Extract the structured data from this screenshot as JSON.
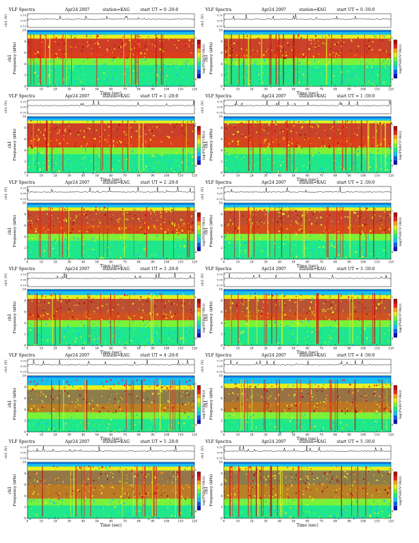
{
  "figure_labels": {
    "panel_title": "VLF Spectra",
    "date": "Apr24 2007",
    "station": "station=KAG",
    "start_prefix": "start  UT",
    "xlabel": "Time  (sec)",
    "ylabel_top": "ch1 (V)",
    "ylabel_spec_channel": "ch1",
    "ylabel_spec": "Frequency  (kHz)",
    "colorbar_label": "log(PSD/(V²/Hz))"
  },
  "panel_times": [
    "= 0 :20:0",
    "= 0 :50:0",
    "= 1 :20:0",
    "= 1 :50:0",
    "= 2 :20:0",
    "= 2 :50:0",
    "= 3 :20:0",
    "= 3 :50:0",
    "= 4 :20:0",
    "= 4 :50:0",
    "= 5 :20:0",
    "= 5 :50:0"
  ],
  "colors": {
    "spectrum_scale": [
      "#1212b8",
      "#1060e8",
      "#18c0ee",
      "#1fe88a",
      "#7af23a",
      "#e8ee20",
      "#f5a21c",
      "#e82418",
      "#b01010"
    ],
    "panel_background": "#ffffff",
    "axis": "#000000"
  },
  "chart_data": [
    {
      "type": "heatmap",
      "panel": "UT 0:20:0",
      "top_trace_yticks": [
        "0.10",
        "0.00",
        "-0.10"
      ],
      "top_trace_ylim": [
        -0.1,
        0.1
      ],
      "xlim": [
        0,
        120
      ],
      "xticks": [
        0,
        10,
        20,
        30,
        40,
        50,
        60,
        70,
        80,
        90,
        100,
        110,
        120
      ],
      "ylim_khz": [
        0,
        10
      ],
      "yticks_khz": [
        0,
        2,
        4,
        6,
        8,
        10
      ],
      "colorbar_range": [
        -4,
        1
      ],
      "colorbar_ticks": [
        1,
        -4
      ],
      "band_khz": {
        "dense_red": [
          5,
          8.5
        ],
        "yellow": [
          8.5,
          9.2
        ],
        "cyan_top": [
          9.2,
          10
        ]
      },
      "intensity": 0.88
    },
    {
      "type": "heatmap",
      "panel": "UT 0:50:0",
      "top_trace_yticks": [
        "0.10",
        "0.00",
        "-0.10"
      ],
      "top_trace_ylim": [
        -0.1,
        0.1
      ],
      "xlim": [
        0,
        120
      ],
      "xticks": [
        0,
        10,
        20,
        30,
        40,
        50,
        60,
        70,
        80,
        90,
        100,
        110,
        120
      ],
      "ylim_khz": [
        0,
        10
      ],
      "yticks_khz": [
        0,
        2,
        4,
        6,
        8,
        10
      ],
      "colorbar_range": [
        -4,
        1
      ],
      "colorbar_ticks": [
        1,
        -4
      ],
      "band_khz": {
        "dense_red": [
          5,
          8.5
        ],
        "yellow": [
          8.5,
          9.2
        ],
        "cyan_top": [
          9.2,
          10
        ]
      },
      "intensity": 0.85
    },
    {
      "type": "heatmap",
      "panel": "UT 1:20:0",
      "top_trace_yticks": [
        "0.20",
        "0.00",
        "-0.20"
      ],
      "top_trace_ylim": [
        -0.2,
        0.2
      ],
      "xlim": [
        0,
        120
      ],
      "xticks": [
        0,
        10,
        20,
        30,
        40,
        50,
        60,
        70,
        80,
        90,
        100,
        110,
        120
      ],
      "ylim_khz": [
        0,
        10
      ],
      "yticks_khz": [
        0,
        2,
        4,
        6,
        8,
        10
      ],
      "colorbar_range": [
        -4,
        1
      ],
      "colorbar_ticks": [
        1,
        -4
      ],
      "band_khz": {
        "dense_red": [
          4.5,
          8.8
        ],
        "yellow": [
          8.8,
          9.3
        ],
        "cyan_top": [
          9.3,
          10
        ]
      },
      "intensity": 0.86
    },
    {
      "type": "heatmap",
      "panel": "UT 1:50:0",
      "top_trace_yticks": [
        "0.20",
        "0.00",
        "-0.20"
      ],
      "top_trace_ylim": [
        -0.2,
        0.2
      ],
      "xlim": [
        0,
        120
      ],
      "xticks": [
        0,
        10,
        20,
        30,
        40,
        50,
        60,
        70,
        80,
        90,
        100,
        110,
        120
      ],
      "ylim_khz": [
        0,
        10
      ],
      "yticks_khz": [
        0,
        2,
        4,
        6,
        8,
        10
      ],
      "colorbar_range": [
        -4,
        1
      ],
      "colorbar_ticks": [
        1,
        -4
      ],
      "band_khz": {
        "dense_red": [
          4.5,
          8.8
        ],
        "yellow": [
          8.8,
          9.3
        ],
        "cyan_top": [
          9.3,
          10
        ]
      },
      "intensity": 0.84
    },
    {
      "type": "heatmap",
      "panel": "UT 2:20:0",
      "top_trace_yticks": [
        "0.20",
        "0.00",
        "-0.20"
      ],
      "top_trace_ylim": [
        -0.2,
        0.2
      ],
      "xlim": [
        0,
        120
      ],
      "xticks": [
        0,
        10,
        20,
        30,
        40,
        50,
        60,
        70,
        80,
        90,
        100,
        110,
        120
      ],
      "ylim_khz": [
        0,
        10
      ],
      "yticks_khz": [
        0,
        2,
        4,
        6,
        8,
        10
      ],
      "colorbar_range": [
        -4,
        1
      ],
      "colorbar_ticks": [
        1,
        -4
      ],
      "band_khz": {
        "dense_red": [
          4.5,
          8.6
        ],
        "yellow": [
          8.6,
          9.2
        ],
        "cyan_top": [
          9.2,
          10
        ]
      },
      "intensity": 0.8
    },
    {
      "type": "heatmap",
      "panel": "UT 2:50:0",
      "top_trace_yticks": [
        "0.20",
        "0.00",
        "-0.20"
      ],
      "top_trace_ylim": [
        -0.2,
        0.2
      ],
      "xlim": [
        0,
        120
      ],
      "xticks": [
        0,
        10,
        20,
        30,
        40,
        50,
        60,
        70,
        80,
        90,
        100,
        110,
        120
      ],
      "ylim_khz": [
        0,
        10
      ],
      "yticks_khz": [
        0,
        2,
        4,
        6,
        8,
        10
      ],
      "colorbar_range": [
        -4,
        1
      ],
      "colorbar_ticks": [
        1,
        -4
      ],
      "band_khz": {
        "dense_red": [
          4.5,
          8.6
        ],
        "yellow": [
          8.6,
          9.2
        ],
        "cyan_top": [
          9.2,
          10
        ]
      },
      "intensity": 0.8
    },
    {
      "type": "heatmap",
      "panel": "UT 3:20:0",
      "top_trace_yticks": [
        "0.10",
        "0.00",
        "-0.10"
      ],
      "top_trace_ylim": [
        -0.1,
        0.1
      ],
      "xlim": [
        0,
        120
      ],
      "xticks": [
        0,
        10,
        20,
        30,
        40,
        50,
        60,
        70,
        80,
        90,
        100,
        110,
        120
      ],
      "ylim_khz": [
        0,
        10
      ],
      "yticks_khz": [
        0,
        2,
        4,
        6,
        8,
        10
      ],
      "colorbar_range": [
        -4,
        1
      ],
      "colorbar_ticks": [
        1,
        -4
      ],
      "band_khz": {
        "dense_red": [
          4.5,
          8.3
        ],
        "yellow": [
          8.3,
          9.0
        ],
        "cyan_top": [
          9.0,
          10
        ]
      },
      "intensity": 0.78
    },
    {
      "type": "heatmap",
      "panel": "UT 3:50:0",
      "top_trace_yticks": [
        "0.10",
        "0.00",
        "-0.10"
      ],
      "top_trace_ylim": [
        -0.1,
        0.1
      ],
      "xlim": [
        0,
        120
      ],
      "xticks": [
        0,
        10,
        20,
        30,
        40,
        50,
        60,
        70,
        80,
        90,
        100,
        110,
        120
      ],
      "ylim_khz": [
        0,
        10
      ],
      "yticks_khz": [
        0,
        2,
        4,
        6,
        8,
        10
      ],
      "colorbar_range": [
        -4,
        1
      ],
      "colorbar_ticks": [
        1,
        -4
      ],
      "band_khz": {
        "dense_red": [
          4.5,
          8.3
        ],
        "yellow": [
          8.3,
          9.0
        ],
        "cyan_top": [
          9.0,
          10
        ]
      },
      "intensity": 0.76
    },
    {
      "type": "heatmap",
      "panel": "UT 4:20:0",
      "top_trace_yticks": [
        "0.20",
        "0.00",
        "-0.20"
      ],
      "top_trace_ylim": [
        -0.2,
        0.2
      ],
      "xlim": [
        0,
        120
      ],
      "xticks": [
        0,
        10,
        20,
        30,
        40,
        50,
        60,
        70,
        80,
        90,
        100,
        110,
        120
      ],
      "ylim_khz": [
        0,
        10
      ],
      "yticks_khz": [
        0,
        2,
        4,
        6,
        8,
        10
      ],
      "colorbar_range": [
        -4,
        1
      ],
      "colorbar_ticks": [
        1,
        -4
      ],
      "band_khz": {
        "dense_red": [
          3.5,
          7.5
        ],
        "yellow": [
          7.5,
          8.3
        ],
        "cyan_top": [
          8.3,
          10
        ]
      },
      "intensity": 0.55
    },
    {
      "type": "heatmap",
      "panel": "UT 4:50:0",
      "top_trace_yticks": [
        "0.10",
        "0.00",
        "-0.10"
      ],
      "top_trace_ylim": [
        -0.1,
        0.1
      ],
      "xlim": [
        0,
        120
      ],
      "xticks": [
        0,
        10,
        20,
        30,
        40,
        50,
        60,
        70,
        80,
        90,
        100,
        110,
        120
      ],
      "ylim_khz": [
        0,
        10
      ],
      "yticks_khz": [
        0,
        2,
        4,
        6,
        8,
        10
      ],
      "colorbar_range": [
        -4,
        1
      ],
      "colorbar_ticks": [
        1,
        -4
      ],
      "band_khz": {
        "dense_red": [
          3.5,
          7.8
        ],
        "yellow": [
          7.8,
          8.6
        ],
        "cyan_top": [
          8.6,
          10
        ]
      },
      "intensity": 0.6
    },
    {
      "type": "heatmap",
      "panel": "UT 5:20:0",
      "top_trace_yticks": [
        "0.20",
        "0.00",
        "-0.20"
      ],
      "top_trace_ylim": [
        -0.2,
        0.2
      ],
      "xlim": [
        0,
        120
      ],
      "xticks": [
        0,
        10,
        20,
        30,
        40,
        50,
        60,
        70,
        80,
        90,
        100,
        110,
        120
      ],
      "ylim_khz": [
        0,
        10
      ],
      "yticks_khz": [
        0,
        2,
        4,
        6,
        8,
        10
      ],
      "colorbar_range": [
        -4,
        1
      ],
      "colorbar_ticks": [
        1,
        -4
      ],
      "band_khz": {
        "dense_red": [
          3.5,
          8.5
        ],
        "yellow": [
          8.5,
          9.2
        ],
        "cyan_top": [
          9.2,
          10
        ]
      },
      "intensity": 0.58
    },
    {
      "type": "heatmap",
      "panel": "UT 5:50:0",
      "top_trace_yticks": [
        "0.10",
        "0.00",
        "-0.10"
      ],
      "top_trace_ylim": [
        -0.1,
        0.1
      ],
      "xlim": [
        0,
        120
      ],
      "xticks": [
        0,
        10,
        20,
        30,
        40,
        50,
        60,
        70,
        80,
        90,
        100,
        110,
        120
      ],
      "ylim_khz": [
        0,
        10
      ],
      "yticks_khz": [
        0,
        2,
        4,
        6,
        8,
        10
      ],
      "colorbar_range": [
        -4,
        1
      ],
      "colorbar_ticks": [
        1,
        -4
      ],
      "band_khz": {
        "dense_red": [
          3.5,
          8.5
        ],
        "yellow": [
          8.5,
          9.2
        ],
        "cyan_top": [
          9.2,
          10
        ]
      },
      "intensity": 0.55
    }
  ]
}
